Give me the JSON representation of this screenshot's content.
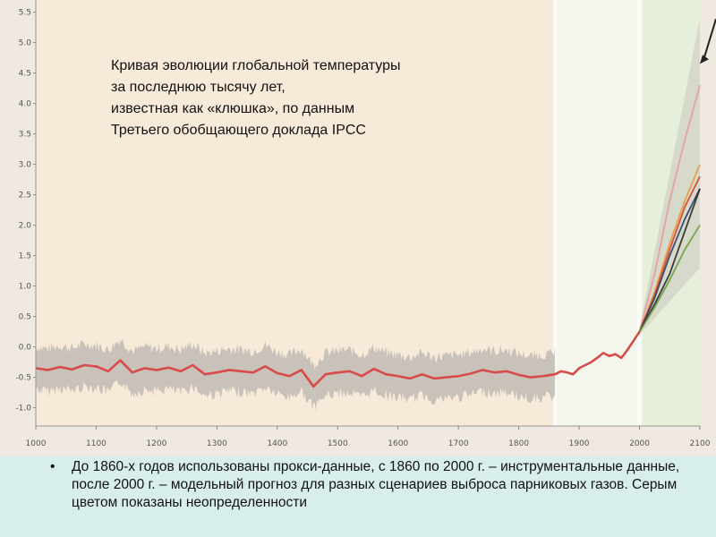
{
  "title_lines": [
    "Кривая эволюции глобальной температуры",
    "за последнюю тысячу лет,",
    "известная как «клюшка», по данным",
    "Третьего обобщающего доклада IPCC"
  ],
  "note": {
    "bullet": "•",
    "text": "До 1860-х годов использованы прокси-данные, с 1860 по 2000 г. – инструментальные данные, после 2000 г. – модельный прогноз для разных сценариев выброса парниковых газов. Серым цветом показаны неопределенности"
  },
  "colors": {
    "reconstruction": "#d94a4a",
    "uncertainty": "#b9b4b0",
    "proxy_bg": "#f8ead8",
    "instrumental_bg": "#f4f6ee",
    "projection_bg": "#e6efd9",
    "scenario_red": "#d2452f",
    "scenario_orange": "#e89a3c",
    "scenario_pink": "#e59b9b",
    "scenario_green": "#6a9e3f",
    "scenario_black": "#2a2a2a",
    "scenario_navy": "#2f3f6a"
  },
  "chart_data": {
    "type": "line",
    "x_ticks": [
      "1000",
      "1100",
      "1200",
      "1300",
      "1400",
      "1500",
      "1600",
      "1700",
      "1800",
      "1900",
      "2000",
      "2100"
    ],
    "y_ticks": [
      "5.5",
      "5.0",
      "4.5",
      "4.0",
      "3.5",
      "3.0",
      "2.5",
      "2.0",
      "1.5",
      "1.0",
      "0.5",
      "0.0",
      "-0.5",
      "-1.0"
    ],
    "xlim": [
      1000,
      2100
    ],
    "ylim": [
      -1.3,
      5.7
    ],
    "grid": false,
    "periods": [
      {
        "name": "proxy",
        "x": [
          1000,
          1860
        ]
      },
      {
        "name": "instrumental",
        "x": [
          1860,
          2000
        ]
      },
      {
        "name": "projection",
        "x": [
          2000,
          2100
        ]
      }
    ],
    "series": [
      {
        "role": "reconstruction",
        "x": [
          1000,
          1020,
          1040,
          1060,
          1080,
          1100,
          1120,
          1140,
          1160,
          1180,
          1200,
          1220,
          1240,
          1260,
          1280,
          1300,
          1320,
          1340,
          1360,
          1380,
          1400,
          1420,
          1440,
          1460,
          1480,
          1500,
          1520,
          1540,
          1560,
          1580,
          1600,
          1620,
          1640,
          1660,
          1680,
          1700,
          1720,
          1740,
          1760,
          1780,
          1800,
          1820,
          1840,
          1860,
          1870,
          1880,
          1890,
          1900,
          1910,
          1920,
          1930,
          1940,
          1950,
          1960,
          1970,
          1980,
          1990,
          2000
        ],
        "y": [
          -0.35,
          -0.38,
          -0.33,
          -0.37,
          -0.3,
          -0.32,
          -0.4,
          -0.22,
          -0.42,
          -0.35,
          -0.38,
          -0.34,
          -0.4,
          -0.3,
          -0.45,
          -0.42,
          -0.38,
          -0.4,
          -0.42,
          -0.32,
          -0.43,
          -0.48,
          -0.38,
          -0.65,
          -0.45,
          -0.42,
          -0.4,
          -0.48,
          -0.36,
          -0.45,
          -0.48,
          -0.52,
          -0.45,
          -0.52,
          -0.5,
          -0.48,
          -0.44,
          -0.38,
          -0.42,
          -0.4,
          -0.46,
          -0.5,
          -0.48,
          -0.45,
          -0.4,
          -0.42,
          -0.45,
          -0.35,
          -0.3,
          -0.25,
          -0.18,
          -0.1,
          -0.15,
          -0.12,
          -0.18,
          -0.05,
          0.1,
          0.25
        ]
      },
      {
        "role": "scenario",
        "color_key": "scenario_pink",
        "x": [
          2000,
          2025,
          2050,
          2075,
          2100
        ],
        "y": [
          0.25,
          1.2,
          2.4,
          3.4,
          4.3
        ]
      },
      {
        "role": "scenario",
        "color_key": "scenario_orange",
        "x": [
          2000,
          2025,
          2050,
          2075,
          2100
        ],
        "y": [
          0.25,
          0.9,
          1.7,
          2.4,
          3.0
        ]
      },
      {
        "role": "scenario",
        "color_key": "scenario_red",
        "x": [
          2000,
          2025,
          2050,
          2075,
          2100
        ],
        "y": [
          0.25,
          0.85,
          1.6,
          2.3,
          2.8
        ]
      },
      {
        "role": "scenario",
        "color_key": "scenario_navy",
        "x": [
          2000,
          2025,
          2050,
          2075,
          2100
        ],
        "y": [
          0.25,
          0.8,
          1.5,
          2.1,
          2.6
        ]
      },
      {
        "role": "scenario",
        "color_key": "scenario_black",
        "x": [
          2000,
          2025,
          2050,
          2075,
          2100
        ],
        "y": [
          0.25,
          0.7,
          1.2,
          1.9,
          2.6
        ]
      },
      {
        "role": "scenario",
        "color_key": "scenario_green",
        "x": [
          2000,
          2025,
          2050,
          2075,
          2100
        ],
        "y": [
          0.25,
          0.65,
          1.1,
          1.6,
          2.0
        ]
      }
    ],
    "uncertainty_proxy": {
      "half_width": 0.35
    },
    "uncertainty_projection": {
      "x": [
        2000,
        2100
      ],
      "lower": [
        0.2,
        1.3
      ],
      "upper": [
        0.3,
        5.4
      ]
    },
    "arrow_target": {
      "x": 2100,
      "y": 4.8
    }
  }
}
